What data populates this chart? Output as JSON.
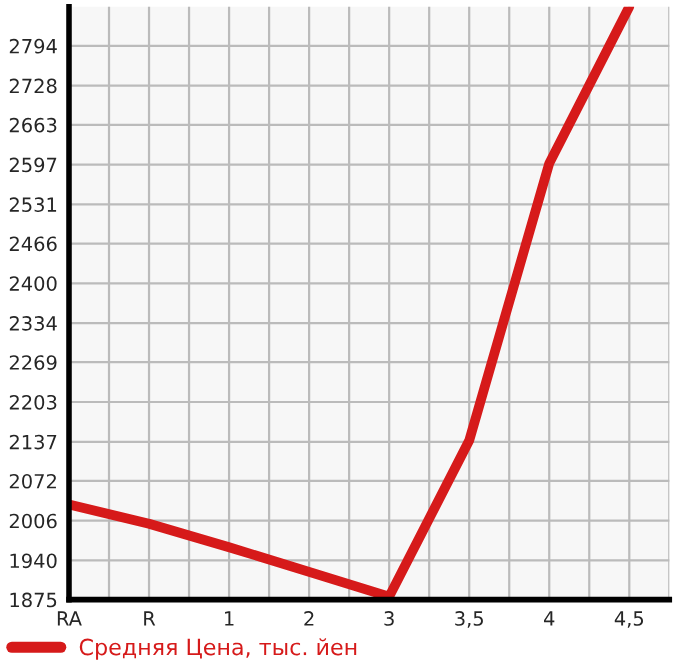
{
  "chart_data": {
    "type": "line",
    "categories": [
      "RA",
      "R",
      "1",
      "2",
      "3",
      "3,5",
      "4",
      "4,5"
    ],
    "series": [
      {
        "name": "Средняя Цена, тыс. йен",
        "color": "#d61a1a",
        "values": [
          2033,
          2001,
          1962,
          1921,
          1880,
          2139,
          2599,
          2859
        ]
      }
    ],
    "ylim": [
      1875,
      2859
    ],
    "yticks": [
      1875,
      1940,
      2006,
      2072,
      2137,
      2203,
      2269,
      2334,
      2400,
      2466,
      2531,
      2597,
      2663,
      2728,
      2794
    ],
    "grid": true,
    "legend": "bottom",
    "marker": "none",
    "line_style": "solid"
  }
}
